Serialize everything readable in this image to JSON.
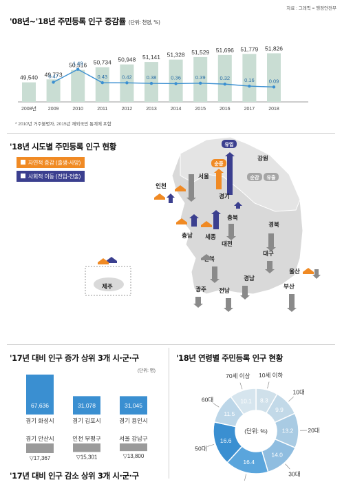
{
  "source": "자료 : 그래픽 = 행정안전부",
  "top": {
    "title": "'08년~'18년 주민등록 인구 증감률",
    "unit": "(단위: 천명, %)",
    "footnote": "* 2010년 거주불명자, 2015년 재외국민 통계에 포함"
  },
  "chart_data": [
    {
      "type": "bar",
      "title": "'08년~'18년 주민등록 인구 증감률",
      "categories": [
        "2008년",
        "2009",
        "2010",
        "2011",
        "2012",
        "2013",
        "2014",
        "2015",
        "2016",
        "2017",
        "2018"
      ],
      "series": [
        {
          "values": [
            49540,
            49773,
            50516,
            50734,
            50948,
            51141,
            51328,
            51529,
            51696,
            51779,
            51826
          ]
        }
      ],
      "value_labels": [
        "49,540",
        "49,773",
        "50,516",
        "50,734",
        "50,948",
        "51,141",
        "51,328",
        "51,529",
        "51,696",
        "51,779",
        "51,826"
      ],
      "bar_color": "#c9ddd3",
      "ylim": [
        48000,
        52500
      ]
    },
    {
      "type": "line",
      "categories": [
        "2009",
        "2010",
        "2011",
        "2012",
        "2013",
        "2014",
        "2015",
        "2016",
        "2017",
        "2018"
      ],
      "series": [
        {
          "values": [
            0.47,
            1.49,
            0.43,
            0.42,
            0.38,
            0.36,
            0.39,
            0.32,
            0.16,
            0.09
          ]
        }
      ],
      "line_color": "#3a8fd1",
      "ylim": [
        0,
        1.8
      ]
    },
    {
      "type": "bar",
      "title": "'17년 대비 인구 증가 상위 3개 시·군·구",
      "unit": "(단위: 명)",
      "categories": [
        "경기 화성시",
        "경기 김포시",
        "경기 용인시"
      ],
      "values": [
        67636,
        31078,
        31045
      ],
      "value_labels": [
        "67,636",
        "31,078",
        "31,045"
      ],
      "bar_color": "#3a8fd1"
    },
    {
      "type": "bar",
      "title": "'17년 대비 인구 감소 상위 3개 시·군·구",
      "categories": [
        "경기 안산시",
        "인천 부평구",
        "서울 강남구"
      ],
      "values": [
        -17367,
        -15301,
        -13800
      ],
      "value_labels": [
        "▽17,367",
        "▽15,301",
        "▽13,800"
      ],
      "bar_color": "#9a9a9a"
    },
    {
      "type": "pie",
      "title": "'18년 연령별 주민등록 인구 현황",
      "center_label": "(단위: %)",
      "categories": [
        "10세 이하",
        "10대",
        "20대",
        "30대",
        "40대",
        "50대",
        "60대",
        "70세 이상"
      ],
      "values": [
        8.3,
        9.9,
        13.2,
        14.0,
        16.4,
        16.6,
        11.5,
        10.1
      ],
      "colors": [
        "#cfe0ea",
        "#c2d9e8",
        "#a9cbe3",
        "#8fbde0",
        "#5aa5dc",
        "#3a8fd1",
        "#bcd6e8",
        "#d6e5ee"
      ]
    }
  ],
  "map": {
    "title": "'18년 시도별 주민등록 인구 현황",
    "legend": {
      "natural": "자연적 증감 (출생-사망)",
      "social": "사회적 이동 (전입-전출)"
    },
    "colors": {
      "natural": "#f08a24",
      "social": "#3b3f8f",
      "decrease": "#8a8a8a"
    },
    "regions": [
      "유입",
      "순증",
      "강원",
      "순감",
      "유출",
      "서울",
      "인천",
      "경기",
      "충북",
      "경북",
      "충남",
      "세종",
      "대전",
      "전북",
      "대구",
      "울산",
      "경남",
      "광주",
      "전남",
      "부산",
      "제주"
    ]
  }
}
